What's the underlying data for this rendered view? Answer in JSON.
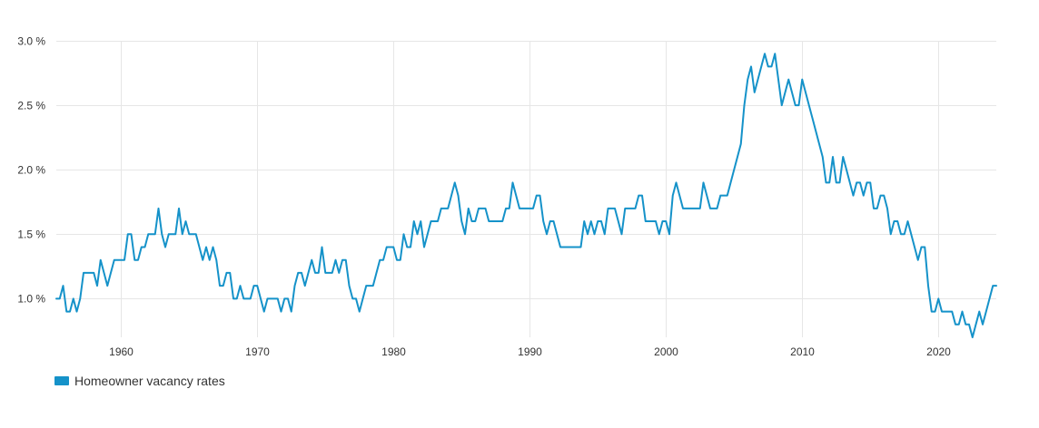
{
  "chart_data": {
    "type": "line",
    "title": "",
    "xlabel": "",
    "ylabel": "",
    "xlim": [
      1955.25,
      2024.25
    ],
    "ylim": [
      0.7,
      3.0
    ],
    "grid": true,
    "legend_position": "bottom-left",
    "x_ticks": [
      1960,
      1970,
      1980,
      1990,
      2000,
      2010,
      2020
    ],
    "x_tick_labels": [
      "1960",
      "1970",
      "1980",
      "1990",
      "2000",
      "2010",
      "2020"
    ],
    "y_ticks": [
      1.0,
      1.5,
      2.0,
      2.5,
      3.0
    ],
    "y_tick_labels": [
      "1.0 %",
      "1.5 %",
      "2.0 %",
      "2.5 %",
      "3.0 %"
    ],
    "series": [
      {
        "name": "Homeowner vacancy rates",
        "color": "#1592c9",
        "points": [
          [
            1955.25,
            1.0
          ],
          [
            1955.5,
            1.0
          ],
          [
            1955.75,
            1.1
          ],
          [
            1956.0,
            0.9
          ],
          [
            1956.25,
            0.9
          ],
          [
            1956.5,
            1.0
          ],
          [
            1956.75,
            0.9
          ],
          [
            1957.0,
            1.0
          ],
          [
            1957.25,
            1.2
          ],
          [
            1957.5,
            1.2
          ],
          [
            1957.75,
            1.2
          ],
          [
            1958.0,
            1.2
          ],
          [
            1958.25,
            1.1
          ],
          [
            1958.5,
            1.3
          ],
          [
            1958.75,
            1.2
          ],
          [
            1959.0,
            1.1
          ],
          [
            1959.25,
            1.2
          ],
          [
            1959.5,
            1.3
          ],
          [
            1959.75,
            1.3
          ],
          [
            1960.0,
            1.3
          ],
          [
            1960.25,
            1.3
          ],
          [
            1960.5,
            1.5
          ],
          [
            1960.75,
            1.5
          ],
          [
            1961.0,
            1.3
          ],
          [
            1961.25,
            1.3
          ],
          [
            1961.5,
            1.4
          ],
          [
            1961.75,
            1.4
          ],
          [
            1962.0,
            1.5
          ],
          [
            1962.25,
            1.5
          ],
          [
            1962.5,
            1.5
          ],
          [
            1962.75,
            1.7
          ],
          [
            1963.0,
            1.5
          ],
          [
            1963.25,
            1.4
          ],
          [
            1963.5,
            1.5
          ],
          [
            1963.75,
            1.5
          ],
          [
            1964.0,
            1.5
          ],
          [
            1964.25,
            1.7
          ],
          [
            1964.5,
            1.5
          ],
          [
            1964.75,
            1.6
          ],
          [
            1965.0,
            1.5
          ],
          [
            1965.25,
            1.5
          ],
          [
            1965.5,
            1.5
          ],
          [
            1965.75,
            1.4
          ],
          [
            1966.0,
            1.3
          ],
          [
            1966.25,
            1.4
          ],
          [
            1966.5,
            1.3
          ],
          [
            1966.75,
            1.4
          ],
          [
            1967.0,
            1.3
          ],
          [
            1967.25,
            1.1
          ],
          [
            1967.5,
            1.1
          ],
          [
            1967.75,
            1.2
          ],
          [
            1968.0,
            1.2
          ],
          [
            1968.25,
            1.0
          ],
          [
            1968.5,
            1.0
          ],
          [
            1968.75,
            1.1
          ],
          [
            1969.0,
            1.0
          ],
          [
            1969.25,
            1.0
          ],
          [
            1969.5,
            1.0
          ],
          [
            1969.75,
            1.1
          ],
          [
            1970.0,
            1.1
          ],
          [
            1970.25,
            1.0
          ],
          [
            1970.5,
            0.9
          ],
          [
            1970.75,
            1.0
          ],
          [
            1971.0,
            1.0
          ],
          [
            1971.25,
            1.0
          ],
          [
            1971.5,
            1.0
          ],
          [
            1971.75,
            0.9
          ],
          [
            1972.0,
            1.0
          ],
          [
            1972.25,
            1.0
          ],
          [
            1972.5,
            0.9
          ],
          [
            1972.75,
            1.1
          ],
          [
            1973.0,
            1.2
          ],
          [
            1973.25,
            1.2
          ],
          [
            1973.5,
            1.1
          ],
          [
            1973.75,
            1.2
          ],
          [
            1974.0,
            1.3
          ],
          [
            1974.25,
            1.2
          ],
          [
            1974.5,
            1.2
          ],
          [
            1974.75,
            1.4
          ],
          [
            1975.0,
            1.2
          ],
          [
            1975.25,
            1.2
          ],
          [
            1975.5,
            1.2
          ],
          [
            1975.75,
            1.3
          ],
          [
            1976.0,
            1.2
          ],
          [
            1976.25,
            1.3
          ],
          [
            1976.5,
            1.3
          ],
          [
            1976.75,
            1.1
          ],
          [
            1977.0,
            1.0
          ],
          [
            1977.25,
            1.0
          ],
          [
            1977.5,
            0.9
          ],
          [
            1977.75,
            1.0
          ],
          [
            1978.0,
            1.1
          ],
          [
            1978.25,
            1.1
          ],
          [
            1978.5,
            1.1
          ],
          [
            1978.75,
            1.2
          ],
          [
            1979.0,
            1.3
          ],
          [
            1979.25,
            1.3
          ],
          [
            1979.5,
            1.4
          ],
          [
            1979.75,
            1.4
          ],
          [
            1980.0,
            1.4
          ],
          [
            1980.25,
            1.3
          ],
          [
            1980.5,
            1.3
          ],
          [
            1980.75,
            1.5
          ],
          [
            1981.0,
            1.4
          ],
          [
            1981.25,
            1.4
          ],
          [
            1981.5,
            1.6
          ],
          [
            1981.75,
            1.5
          ],
          [
            1982.0,
            1.6
          ],
          [
            1982.25,
            1.4
          ],
          [
            1982.5,
            1.5
          ],
          [
            1982.75,
            1.6
          ],
          [
            1983.0,
            1.6
          ],
          [
            1983.25,
            1.6
          ],
          [
            1983.5,
            1.7
          ],
          [
            1983.75,
            1.7
          ],
          [
            1984.0,
            1.7
          ],
          [
            1984.25,
            1.8
          ],
          [
            1984.5,
            1.9
          ],
          [
            1984.75,
            1.8
          ],
          [
            1985.0,
            1.6
          ],
          [
            1985.25,
            1.5
          ],
          [
            1985.5,
            1.7
          ],
          [
            1985.75,
            1.6
          ],
          [
            1986.0,
            1.6
          ],
          [
            1986.25,
            1.7
          ],
          [
            1986.5,
            1.7
          ],
          [
            1986.75,
            1.7
          ],
          [
            1987.0,
            1.6
          ],
          [
            1987.25,
            1.6
          ],
          [
            1987.5,
            1.6
          ],
          [
            1987.75,
            1.6
          ],
          [
            1988.0,
            1.6
          ],
          [
            1988.25,
            1.7
          ],
          [
            1988.5,
            1.7
          ],
          [
            1988.75,
            1.9
          ],
          [
            1989.0,
            1.8
          ],
          [
            1989.25,
            1.7
          ],
          [
            1989.5,
            1.7
          ],
          [
            1989.75,
            1.7
          ],
          [
            1990.0,
            1.7
          ],
          [
            1990.25,
            1.7
          ],
          [
            1990.5,
            1.8
          ],
          [
            1990.75,
            1.8
          ],
          [
            1991.0,
            1.6
          ],
          [
            1991.25,
            1.5
          ],
          [
            1991.5,
            1.6
          ],
          [
            1991.75,
            1.6
          ],
          [
            1992.0,
            1.5
          ],
          [
            1992.25,
            1.4
          ],
          [
            1992.5,
            1.4
          ],
          [
            1992.75,
            1.4
          ],
          [
            1993.0,
            1.4
          ],
          [
            1993.25,
            1.4
          ],
          [
            1993.5,
            1.4
          ],
          [
            1993.75,
            1.4
          ],
          [
            1994.0,
            1.6
          ],
          [
            1994.25,
            1.5
          ],
          [
            1994.5,
            1.6
          ],
          [
            1994.75,
            1.5
          ],
          [
            1995.0,
            1.6
          ],
          [
            1995.25,
            1.6
          ],
          [
            1995.5,
            1.5
          ],
          [
            1995.75,
            1.7
          ],
          [
            1996.0,
            1.7
          ],
          [
            1996.25,
            1.7
          ],
          [
            1996.5,
            1.6
          ],
          [
            1996.75,
            1.5
          ],
          [
            1997.0,
            1.7
          ],
          [
            1997.25,
            1.7
          ],
          [
            1997.5,
            1.7
          ],
          [
            1997.75,
            1.7
          ],
          [
            1998.0,
            1.8
          ],
          [
            1998.25,
            1.8
          ],
          [
            1998.5,
            1.6
          ],
          [
            1998.75,
            1.6
          ],
          [
            1999.0,
            1.6
          ],
          [
            1999.25,
            1.6
          ],
          [
            1999.5,
            1.5
          ],
          [
            1999.75,
            1.6
          ],
          [
            2000.0,
            1.6
          ],
          [
            2000.25,
            1.5
          ],
          [
            2000.5,
            1.8
          ],
          [
            2000.75,
            1.9
          ],
          [
            2001.0,
            1.8
          ],
          [
            2001.25,
            1.7
          ],
          [
            2001.5,
            1.7
          ],
          [
            2001.75,
            1.7
          ],
          [
            2002.0,
            1.7
          ],
          [
            2002.25,
            1.7
          ],
          [
            2002.5,
            1.7
          ],
          [
            2002.75,
            1.9
          ],
          [
            2003.0,
            1.8
          ],
          [
            2003.25,
            1.7
          ],
          [
            2003.5,
            1.7
          ],
          [
            2003.75,
            1.7
          ],
          [
            2004.0,
            1.8
          ],
          [
            2004.25,
            1.8
          ],
          [
            2004.5,
            1.8
          ],
          [
            2004.75,
            1.9
          ],
          [
            2005.0,
            2.0
          ],
          [
            2005.25,
            2.1
          ],
          [
            2005.5,
            2.2
          ],
          [
            2005.75,
            2.5
          ],
          [
            2006.0,
            2.7
          ],
          [
            2006.25,
            2.8
          ],
          [
            2006.5,
            2.6
          ],
          [
            2006.75,
            2.7
          ],
          [
            2007.0,
            2.8
          ],
          [
            2007.25,
            2.9
          ],
          [
            2007.5,
            2.8
          ],
          [
            2007.75,
            2.8
          ],
          [
            2008.0,
            2.9
          ],
          [
            2008.25,
            2.7
          ],
          [
            2008.5,
            2.5
          ],
          [
            2008.75,
            2.6
          ],
          [
            2009.0,
            2.7
          ],
          [
            2009.25,
            2.6
          ],
          [
            2009.5,
            2.5
          ],
          [
            2009.75,
            2.5
          ],
          [
            2010.0,
            2.7
          ],
          [
            2010.25,
            2.6
          ],
          [
            2010.5,
            2.5
          ],
          [
            2010.75,
            2.4
          ],
          [
            2011.0,
            2.3
          ],
          [
            2011.25,
            2.2
          ],
          [
            2011.5,
            2.1
          ],
          [
            2011.75,
            1.9
          ],
          [
            2012.0,
            1.9
          ],
          [
            2012.25,
            2.1
          ],
          [
            2012.5,
            1.9
          ],
          [
            2012.75,
            1.9
          ],
          [
            2013.0,
            2.1
          ],
          [
            2013.25,
            2.0
          ],
          [
            2013.5,
            1.9
          ],
          [
            2013.75,
            1.8
          ],
          [
            2014.0,
            1.9
          ],
          [
            2014.25,
            1.9
          ],
          [
            2014.5,
            1.8
          ],
          [
            2014.75,
            1.9
          ],
          [
            2015.0,
            1.9
          ],
          [
            2015.25,
            1.7
          ],
          [
            2015.5,
            1.7
          ],
          [
            2015.75,
            1.8
          ],
          [
            2016.0,
            1.8
          ],
          [
            2016.25,
            1.7
          ],
          [
            2016.5,
            1.5
          ],
          [
            2016.75,
            1.6
          ],
          [
            2017.0,
            1.6
          ],
          [
            2017.25,
            1.5
          ],
          [
            2017.5,
            1.5
          ],
          [
            2017.75,
            1.6
          ],
          [
            2018.0,
            1.5
          ],
          [
            2018.25,
            1.4
          ],
          [
            2018.5,
            1.3
          ],
          [
            2018.75,
            1.4
          ],
          [
            2019.0,
            1.4
          ],
          [
            2019.25,
            1.1
          ],
          [
            2019.5,
            0.9
          ],
          [
            2019.75,
            0.9
          ],
          [
            2020.0,
            1.0
          ],
          [
            2020.25,
            0.9
          ],
          [
            2020.5,
            0.9
          ],
          [
            2020.75,
            0.9
          ],
          [
            2021.0,
            0.9
          ],
          [
            2021.25,
            0.8
          ],
          [
            2021.5,
            0.8
          ],
          [
            2021.75,
            0.9
          ],
          [
            2022.0,
            0.8
          ],
          [
            2022.25,
            0.8
          ],
          [
            2022.5,
            0.7
          ],
          [
            2022.75,
            0.8
          ],
          [
            2023.0,
            0.9
          ],
          [
            2023.25,
            0.8
          ],
          [
            2023.5,
            0.9
          ],
          [
            2023.75,
            1.0
          ],
          [
            2024.0,
            1.1
          ],
          [
            2024.25,
            1.1
          ]
        ]
      }
    ]
  }
}
